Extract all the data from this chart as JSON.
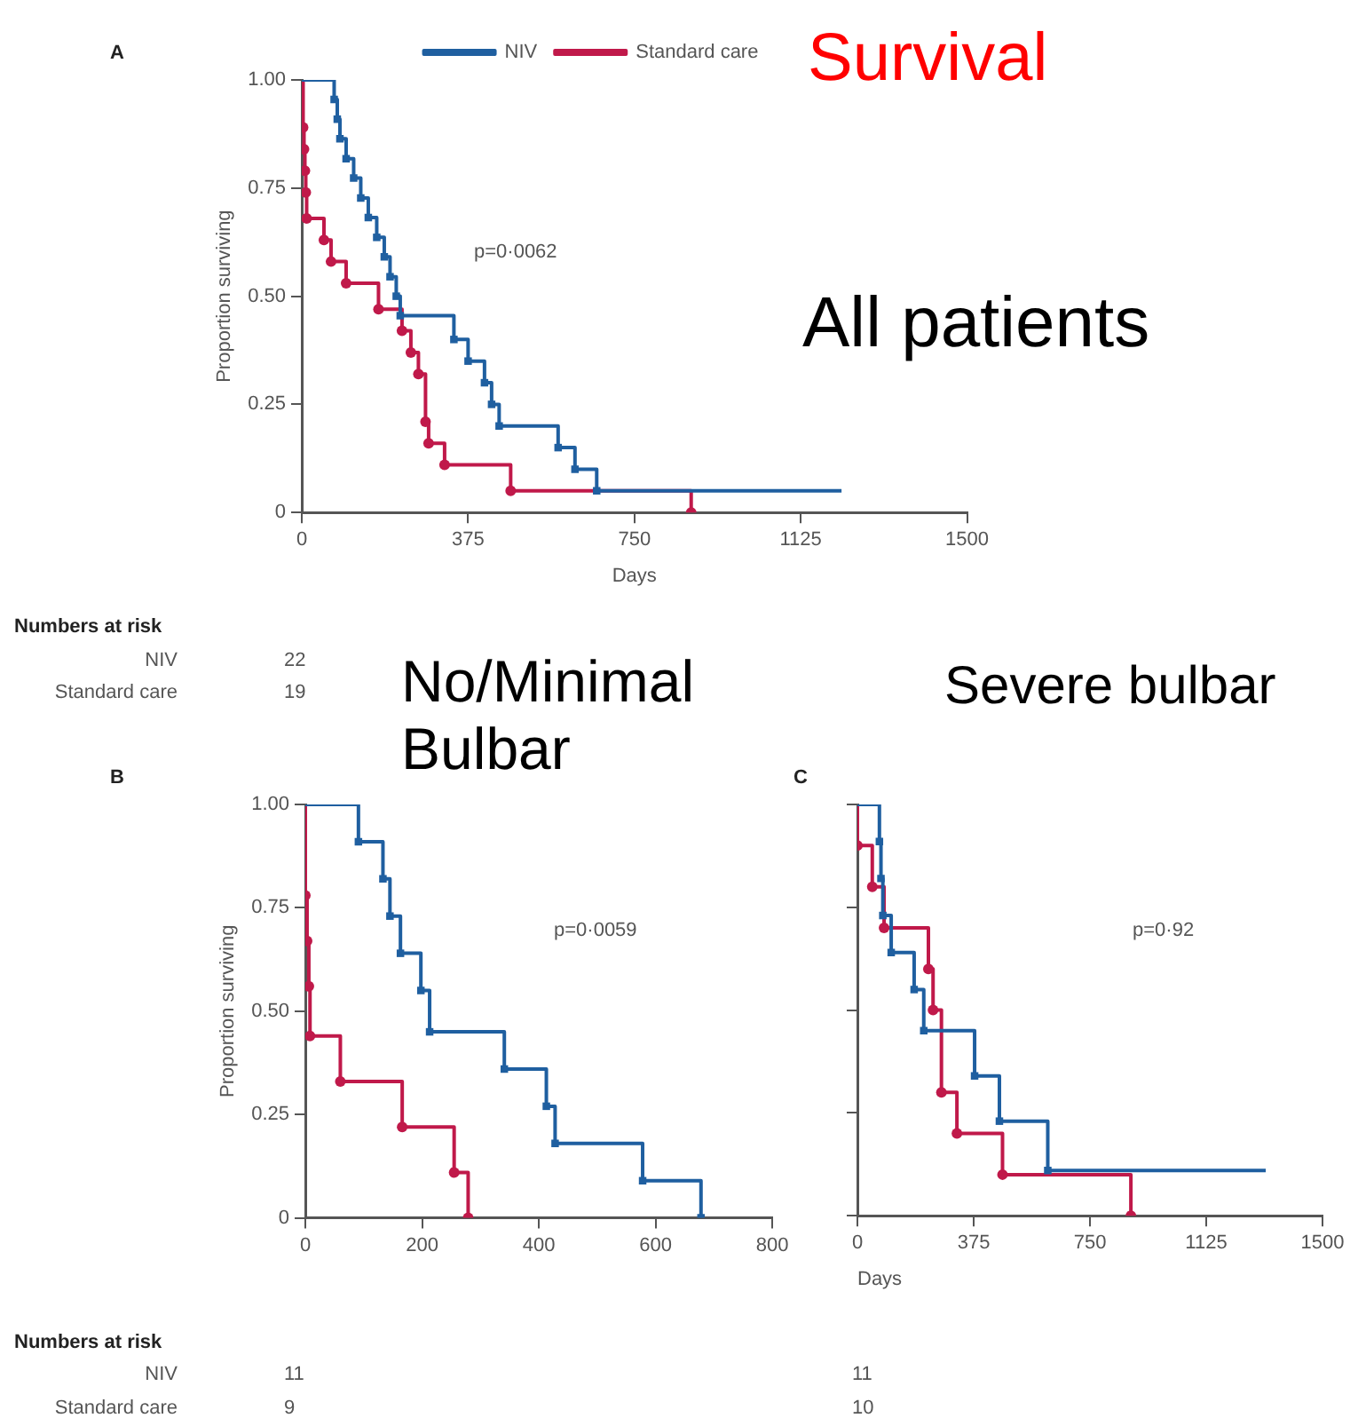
{
  "chart_data": [
    {
      "type": "step",
      "title": "Survival",
      "subtitle": "All patients",
      "xlabel": "Days",
      "ylabel": "Proportion surviving",
      "xlim": [
        0,
        1500
      ],
      "xticks": [
        0,
        375,
        750,
        1125,
        1500
      ],
      "ylim": [
        0,
        1
      ],
      "yticks": [
        0,
        0.25,
        {
          "value": 0.5,
          "label": "0.50"
        },
        0.75,
        {
          "value": 1,
          "label": "1.00"
        }
      ],
      "grid": false,
      "legend": "top",
      "series": [
        {
          "name": "NIV",
          "color": "#1f5fa0",
          "marker": "square",
          "x": [
            0,
            73,
            80,
            86,
            100,
            117,
            133,
            150,
            169,
            186,
            199,
            213,
            222,
            343,
            375,
            412,
            428,
            445,
            578,
            616,
            665,
            1217
          ],
          "values": [
            1,
            0.955,
            0.909,
            0.864,
            0.818,
            0.773,
            0.727,
            0.682,
            0.636,
            0.591,
            0.545,
            0.5,
            0.455,
            0.4,
            0.35,
            0.3,
            0.25,
            0.2,
            0.15,
            0.1,
            0.05,
            0.05
          ]
        },
        {
          "name": "Standard care",
          "color": "#c0194a",
          "marker": "circle",
          "x": [
            0,
            3,
            5,
            7,
            9,
            11,
            50,
            66,
            100,
            173,
            226,
            246,
            263,
            279,
            286,
            322,
            471,
            878
          ],
          "values": [
            1,
            0.89,
            0.84,
            0.79,
            0.74,
            0.68,
            0.63,
            0.58,
            0.53,
            0.47,
            0.42,
            0.37,
            0.32,
            0.21,
            0.16,
            0.11,
            0.05,
            0
          ]
        }
      ],
      "annotations": [
        "A",
        "p=0·0062",
        "Numbers at risk",
        "NIV",
        "22",
        "Standard care",
        "19"
      ]
    },
    {
      "type": "step",
      "title": "No/Minimal Bulbar",
      "ylabel": "Proportion surviving",
      "xlim": [
        0,
        800
      ],
      "xticks": [
        0,
        200,
        400,
        600,
        800
      ],
      "ylim": [
        0,
        1
      ],
      "yticks": [
        0,
        0.25,
        {
          "value": 0.5,
          "label": "0.50"
        },
        0.75,
        {
          "value": 1,
          "label": "1.00"
        }
      ],
      "grid": false,
      "series": [
        {
          "color": "#1f5fa0",
          "marker": "square",
          "x": [
            0,
            91,
            133,
            145,
            163,
            198,
            213,
            341,
            413,
            428,
            578,
            678
          ],
          "values": [
            1,
            0.91,
            0.82,
            0.73,
            0.64,
            0.55,
            0.45,
            0.36,
            0.27,
            0.18,
            0.09,
            0
          ]
        },
        {
          "color": "#c0194a",
          "marker": "circle",
          "x": [
            0,
            0,
            3,
            6,
            8,
            60,
            166,
            255,
            279
          ],
          "values": [
            1,
            0.78,
            0.67,
            0.56,
            0.44,
            0.33,
            0.22,
            0.11,
            0
          ]
        }
      ],
      "annotations": [
        "B",
        "p=0·0059",
        "Numbers at risk",
        "NIV",
        "11",
        "Standard care",
        "9"
      ]
    },
    {
      "type": "step",
      "title": "Severe bulbar",
      "xlabel": "Days",
      "xlim": [
        0,
        1500
      ],
      "xticks": [
        0,
        375,
        750,
        1125,
        1500
      ],
      "ylim": [
        0,
        1
      ],
      "yticks": [
        {
          "value": 0,
          "label": null
        },
        {
          "value": 0.25,
          "label": null
        },
        {
          "value": 0.5,
          "label": null
        },
        {
          "value": 0.75,
          "label": null
        },
        {
          "value": 1,
          "label": null
        }
      ],
      "grid": false,
      "tick_labels": "x",
      "series": [
        {
          "color": "#1f5fa0",
          "marker": "square",
          "x": [
            0,
            71,
            76,
            82,
            109,
            183,
            214,
            378,
            458,
            614,
            1317
          ],
          "values": [
            1,
            0.91,
            0.82,
            0.73,
            0.64,
            0.55,
            0.45,
            0.34,
            0.23,
            0.11,
            0.11
          ]
        },
        {
          "color": "#c0194a",
          "marker": "circle",
          "x": [
            0,
            0,
            48,
            86,
            229,
            244,
            271,
            321,
            468,
            882
          ],
          "values": [
            1,
            0.9,
            0.8,
            0.7,
            0.6,
            0.5,
            0.3,
            0.2,
            0.1,
            0
          ]
        }
      ],
      "annotations": [
        "C",
        "p=0·92",
        "11",
        "10"
      ]
    }
  ]
}
